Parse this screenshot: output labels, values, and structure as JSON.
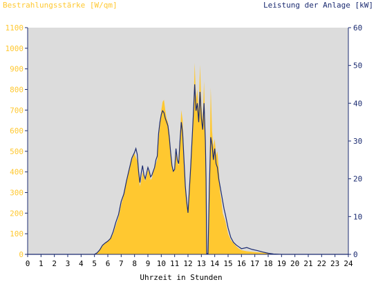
{
  "chart_data": {
    "type": "area",
    "left_title": "Bestrahlungsstärke [W/qm]",
    "right_title": "Leistung der Anlage [kW]",
    "xlabel": "Uhrzeit in Stunden",
    "x_ticks": [
      "0",
      "1",
      "2",
      "3",
      "4",
      "5",
      "6",
      "7",
      "8",
      "9",
      "10",
      "11",
      "12",
      "13",
      "14",
      "15",
      "16",
      "17",
      "18",
      "19",
      "20",
      "21",
      "22",
      "23",
      "24"
    ],
    "y_left_ticks": [
      "0",
      "100",
      "200",
      "300",
      "400",
      "500",
      "600",
      "700",
      "800",
      "900",
      "1000",
      "1100"
    ],
    "y_right_ticks": [
      "0",
      "10",
      "20",
      "30",
      "40",
      "50",
      "60"
    ],
    "xlim": [
      0,
      24
    ],
    "ylim_left": [
      0,
      1100
    ],
    "ylim_right": [
      0,
      60
    ],
    "colors": {
      "plot_bg": "#dcdcdc",
      "irradiance": "#ffc830",
      "power": "#1a2a70",
      "left_text": "#ffc830",
      "right_text": "#1a2a70",
      "axis": "#1a2a70"
    },
    "series": [
      {
        "values": [
          [
            0,
            0
          ],
          [
            5.0,
            0
          ],
          [
            5.2,
            5
          ],
          [
            5.4,
            20
          ],
          [
            5.6,
            40
          ],
          [
            5.8,
            55
          ],
          [
            6.0,
            65
          ],
          [
            6.2,
            75
          ],
          [
            6.4,
            100
          ],
          [
            6.6,
            140
          ],
          [
            6.8,
            180
          ],
          [
            7.0,
            240
          ],
          [
            7.2,
            290
          ],
          [
            7.4,
            360
          ],
          [
            7.6,
            420
          ],
          [
            7.8,
            460
          ],
          [
            8.0,
            490
          ],
          [
            8.1,
            470
          ],
          [
            8.2,
            455
          ],
          [
            8.3,
            390
          ],
          [
            8.4,
            330
          ],
          [
            8.5,
            360
          ],
          [
            8.6,
            400
          ],
          [
            8.7,
            375
          ],
          [
            8.8,
            355
          ],
          [
            8.9,
            380
          ],
          [
            9.0,
            410
          ],
          [
            9.1,
            395
          ],
          [
            9.2,
            360
          ],
          [
            9.3,
            370
          ],
          [
            9.4,
            400
          ],
          [
            9.5,
            415
          ],
          [
            9.6,
            440
          ],
          [
            9.7,
            460
          ],
          [
            9.8,
            560
          ],
          [
            9.9,
            620
          ],
          [
            10.0,
            700
          ],
          [
            10.1,
            740
          ],
          [
            10.2,
            750
          ],
          [
            10.3,
            700
          ],
          [
            10.4,
            660
          ],
          [
            10.5,
            640
          ],
          [
            10.6,
            590
          ],
          [
            10.7,
            510
          ],
          [
            10.8,
            430
          ],
          [
            10.9,
            400
          ],
          [
            11.0,
            410
          ],
          [
            11.1,
            520
          ],
          [
            11.2,
            450
          ],
          [
            11.3,
            430
          ],
          [
            11.4,
            580
          ],
          [
            11.5,
            700
          ],
          [
            11.6,
            650
          ],
          [
            11.7,
            480
          ],
          [
            11.8,
            330
          ],
          [
            11.9,
            280
          ],
          [
            12.0,
            200
          ],
          [
            12.1,
            330
          ],
          [
            12.2,
            420
          ],
          [
            12.3,
            560
          ],
          [
            12.4,
            680
          ],
          [
            12.5,
            930
          ],
          [
            12.6,
            750
          ],
          [
            12.7,
            800
          ],
          [
            12.8,
            690
          ],
          [
            12.9,
            920
          ],
          [
            13.0,
            720
          ],
          [
            13.1,
            650
          ],
          [
            13.2,
            840
          ],
          [
            13.3,
            580
          ],
          [
            13.35,
            420
          ],
          [
            13.4,
            0
          ],
          [
            13.5,
            0
          ],
          [
            13.6,
            350
          ],
          [
            13.7,
            810
          ],
          [
            13.8,
            600
          ],
          [
            13.9,
            520
          ],
          [
            14.0,
            560
          ],
          [
            14.1,
            480
          ],
          [
            14.2,
            500
          ],
          [
            14.3,
            420
          ],
          [
            14.4,
            300
          ],
          [
            14.5,
            260
          ],
          [
            14.6,
            200
          ],
          [
            14.7,
            180
          ],
          [
            14.8,
            160
          ],
          [
            15.0,
            100
          ],
          [
            15.2,
            70
          ],
          [
            15.4,
            55
          ],
          [
            15.6,
            40
          ],
          [
            15.8,
            28
          ],
          [
            16.0,
            20
          ],
          [
            16.4,
            15
          ],
          [
            16.8,
            12
          ],
          [
            17.2,
            10
          ],
          [
            17.6,
            8
          ],
          [
            18.0,
            5
          ],
          [
            18.4,
            3
          ],
          [
            19.0,
            1
          ],
          [
            19.5,
            0
          ],
          [
            24,
            0
          ]
        ]
      },
      {
        "values": [
          [
            0,
            0
          ],
          [
            5.0,
            0
          ],
          [
            5.2,
            0.4
          ],
          [
            5.4,
            1.2
          ],
          [
            5.6,
            2.4
          ],
          [
            5.8,
            3.0
          ],
          [
            6.0,
            3.5
          ],
          [
            6.2,
            4.2
          ],
          [
            6.4,
            6.0
          ],
          [
            6.6,
            8.5
          ],
          [
            6.8,
            10.5
          ],
          [
            7.0,
            14.0
          ],
          [
            7.2,
            16.0
          ],
          [
            7.4,
            19.5
          ],
          [
            7.6,
            22.5
          ],
          [
            7.8,
            25.5
          ],
          [
            8.0,
            27.0
          ],
          [
            8.1,
            28.0
          ],
          [
            8.2,
            26.5
          ],
          [
            8.3,
            22.0
          ],
          [
            8.4,
            19.0
          ],
          [
            8.5,
            21.5
          ],
          [
            8.6,
            23.5
          ],
          [
            8.7,
            21.0
          ],
          [
            8.8,
            20.0
          ],
          [
            8.9,
            21.5
          ],
          [
            9.0,
            23.0
          ],
          [
            9.1,
            22.0
          ],
          [
            9.2,
            20.5
          ],
          [
            9.3,
            21.0
          ],
          [
            9.4,
            22.0
          ],
          [
            9.5,
            23.0
          ],
          [
            9.6,
            25.0
          ],
          [
            9.7,
            26.0
          ],
          [
            9.8,
            32.0
          ],
          [
            9.9,
            35.0
          ],
          [
            10.0,
            37.0
          ],
          [
            10.1,
            38.0
          ],
          [
            10.2,
            37.5
          ],
          [
            10.3,
            36.0
          ],
          [
            10.4,
            35.0
          ],
          [
            10.5,
            34.0
          ],
          [
            10.6,
            31.0
          ],
          [
            10.7,
            27.0
          ],
          [
            10.8,
            23.5
          ],
          [
            10.9,
            22.0
          ],
          [
            11.0,
            22.5
          ],
          [
            11.1,
            28.0
          ],
          [
            11.2,
            25.0
          ],
          [
            11.3,
            24.0
          ],
          [
            11.4,
            30.0
          ],
          [
            11.5,
            35.0
          ],
          [
            11.6,
            32.0
          ],
          [
            11.7,
            25.0
          ],
          [
            11.8,
            18.0
          ],
          [
            11.9,
            14.0
          ],
          [
            12.0,
            11.0
          ],
          [
            12.1,
            17.0
          ],
          [
            12.2,
            23.0
          ],
          [
            12.3,
            30.0
          ],
          [
            12.4,
            37.0
          ],
          [
            12.5,
            45.0
          ],
          [
            12.6,
            38.0
          ],
          [
            12.7,
            40.0
          ],
          [
            12.8,
            35.0
          ],
          [
            12.9,
            43.0
          ],
          [
            13.0,
            36.0
          ],
          [
            13.1,
            33.0
          ],
          [
            13.2,
            40.0
          ],
          [
            13.3,
            30.0
          ],
          [
            13.35,
            20.0
          ],
          [
            13.4,
            0.2
          ],
          [
            13.5,
            0.2
          ],
          [
            13.6,
            18.0
          ],
          [
            13.7,
            31.0
          ],
          [
            13.8,
            29.0
          ],
          [
            13.9,
            25.0
          ],
          [
            14.0,
            28.0
          ],
          [
            14.1,
            24.0
          ],
          [
            14.2,
            23.0
          ],
          [
            14.3,
            20.0
          ],
          [
            14.4,
            18.0
          ],
          [
            14.5,
            16.0
          ],
          [
            14.6,
            14.0
          ],
          [
            14.7,
            12.0
          ],
          [
            14.8,
            10.5
          ],
          [
            15.0,
            7.0
          ],
          [
            15.2,
            4.5
          ],
          [
            15.4,
            3.2
          ],
          [
            15.6,
            2.5
          ],
          [
            15.8,
            2.0
          ],
          [
            16.0,
            1.5
          ],
          [
            16.4,
            1.8
          ],
          [
            16.8,
            1.3
          ],
          [
            17.2,
            1.0
          ],
          [
            17.6,
            0.6
          ],
          [
            18.0,
            0.3
          ],
          [
            18.4,
            0.1
          ],
          [
            19.0,
            0
          ],
          [
            24,
            0
          ]
        ]
      }
    ]
  }
}
